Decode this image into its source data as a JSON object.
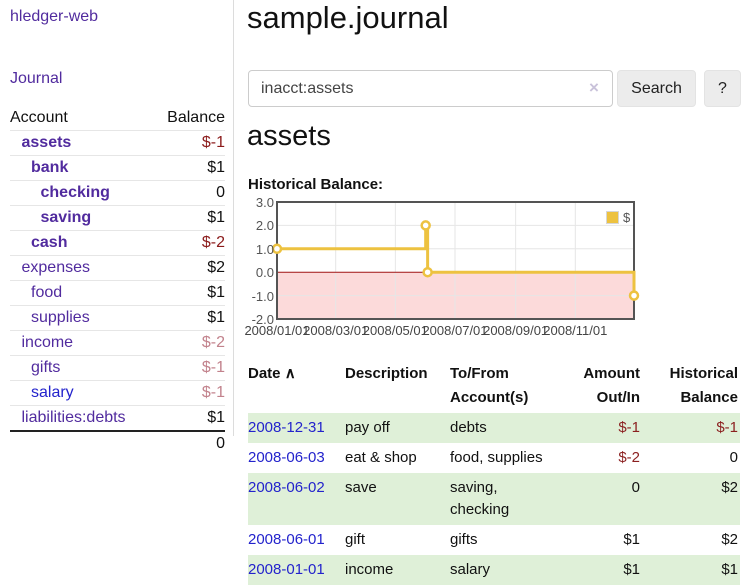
{
  "app": {
    "brand": "hledger-web",
    "nav_journal": "Journal"
  },
  "sidebar": {
    "header": {
      "account": "Account",
      "balance": "Balance"
    },
    "accounts": [
      {
        "name": "assets",
        "balance": "$-1",
        "indent": 1,
        "bold": true,
        "balance_class": "neg-strong",
        "link": "purple"
      },
      {
        "name": "bank",
        "balance": "$1",
        "indent": 2,
        "bold": true,
        "balance_class": "",
        "link": "purple"
      },
      {
        "name": "checking",
        "balance": "0",
        "indent": 3,
        "bold": true,
        "balance_class": "",
        "link": "purple"
      },
      {
        "name": "saving",
        "balance": "$1",
        "indent": 3,
        "bold": true,
        "balance_class": "",
        "link": "purple"
      },
      {
        "name": "cash",
        "balance": "$-2",
        "indent": 2,
        "bold": true,
        "balance_class": "neg-strong",
        "link": "purple"
      },
      {
        "name": "expenses",
        "balance": "$2",
        "indent": 1,
        "bold": false,
        "balance_class": "",
        "link": "purple"
      },
      {
        "name": "food",
        "balance": "$1",
        "indent": 2,
        "bold": false,
        "balance_class": "",
        "link": "purple"
      },
      {
        "name": "supplies",
        "balance": "$1",
        "indent": 2,
        "bold": false,
        "balance_class": "",
        "link": "purple"
      },
      {
        "name": "income",
        "balance": "$-2",
        "indent": 1,
        "bold": false,
        "balance_class": "neg-soft",
        "link": "purple"
      },
      {
        "name": "gifts",
        "balance": "$-1",
        "indent": 2,
        "bold": false,
        "balance_class": "neg-soft",
        "link": "purple"
      },
      {
        "name": "salary",
        "balance": "$-1",
        "indent": 2,
        "bold": false,
        "balance_class": "neg-soft",
        "link": "blue"
      },
      {
        "name": "liabilities:debts",
        "balance": "$1",
        "indent": 1,
        "bold": false,
        "balance_class": "",
        "link": "purple"
      }
    ],
    "total": "0"
  },
  "main": {
    "title": "sample.journal",
    "search": {
      "value": "inacct:assets",
      "clear": "×",
      "button": "Search",
      "help": "?"
    },
    "account_heading": "assets",
    "chart_label": "Historical Balance:"
  },
  "chart_data": {
    "type": "line",
    "title": "Historical Balance",
    "step": true,
    "series": [
      {
        "name": "$",
        "color": "#edc240",
        "points": [
          [
            "2008-01-01",
            1
          ],
          [
            "2008-06-01",
            2
          ],
          [
            "2008-06-03",
            0
          ],
          [
            "2008-12-31",
            -1
          ]
        ]
      }
    ],
    "xlim": [
      "2008-01-01",
      "2008-12-31"
    ],
    "ylim": [
      -2,
      3
    ],
    "yticks": [
      {
        "v": 3,
        "label": "3.0"
      },
      {
        "v": 2,
        "label": "2.0"
      },
      {
        "v": 1,
        "label": "1.0"
      },
      {
        "v": 0,
        "label": "0.0"
      },
      {
        "v": -1,
        "label": "-1.0"
      },
      {
        "v": -2,
        "label": "-2.0"
      }
    ],
    "xticks": [
      {
        "x": "2008-01-01",
        "label": "2008/01/01"
      },
      {
        "x": "2008-03-01",
        "label": "2008/03/01"
      },
      {
        "x": "2008-05-01",
        "label": "2008/05/01"
      },
      {
        "x": "2008-07-01",
        "label": "2008/07/01"
      },
      {
        "x": "2008-09-01",
        "label": "2008/09/01"
      },
      {
        "x": "2008-11-01",
        "label": "2008/11/01"
      }
    ],
    "legend": [
      {
        "label": "$",
        "color": "#edc240"
      }
    ],
    "legend_position": "top-right",
    "grid_color": "#e6e6e6",
    "border_color": "#545454",
    "zero_line_color": "#a01515",
    "negative_region_fill": "#fcdada"
  },
  "register": {
    "headers": {
      "date": "Date",
      "sort_indicator": "∧",
      "description": "Description",
      "accounts": "To/From Account(s)",
      "amount": "Amount Out/In",
      "balance": "Historical Balance"
    },
    "rows": [
      {
        "date": "2008-12-31",
        "description": "pay off",
        "accounts": "debts",
        "amount": "$-1",
        "balance": "$-1",
        "amount_neg": true,
        "balance_neg": true,
        "striped": true
      },
      {
        "date": "2008-06-03",
        "description": "eat & shop",
        "accounts": "food, supplies",
        "amount": "$-2",
        "balance": "0",
        "amount_neg": true,
        "balance_neg": false,
        "striped": false
      },
      {
        "date": "2008-06-02",
        "description": "save",
        "accounts": "saving, checking",
        "amount": "0",
        "balance": "$2",
        "amount_neg": false,
        "balance_neg": false,
        "striped": true
      },
      {
        "date": "2008-06-01",
        "description": "gift",
        "accounts": "gifts",
        "amount": "$1",
        "balance": "$2",
        "amount_neg": false,
        "balance_neg": false,
        "striped": false
      },
      {
        "date": "2008-01-01",
        "description": "income",
        "accounts": "salary",
        "amount": "$1",
        "balance": "$1",
        "amount_neg": false,
        "balance_neg": false,
        "striped": true
      }
    ]
  }
}
